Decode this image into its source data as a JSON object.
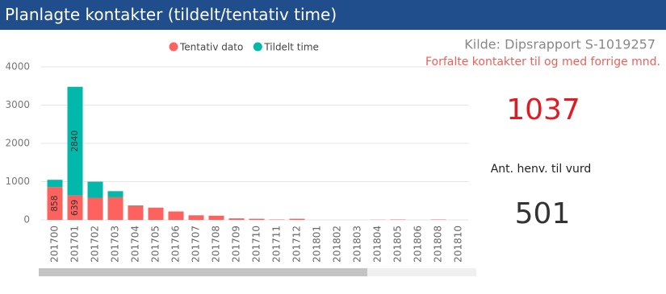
{
  "header": {
    "title": "Planlagte kontakter (tildelt/tentativ time)"
  },
  "source": "Kilde: Dipsrapport S-1019257",
  "subtitle": "Forfalte kontakter til og med forrige mnd.",
  "kpis": [
    {
      "value": 1037,
      "color": "#e01b24"
    },
    {
      "label": "Ant. henv. til vurd",
      "value": 501,
      "color": "#333333"
    }
  ],
  "chart_data": {
    "type": "stacked_bar",
    "categories": [
      "201700",
      "201701",
      "201702",
      "201703",
      "201704",
      "201705",
      "201706",
      "201707",
      "201708",
      "201709",
      "201710",
      "201711",
      "201712",
      "201801",
      "201802",
      "201803",
      "201804",
      "201805",
      "201806",
      "201808",
      "201810"
    ],
    "series": [
      {
        "name": "Tentativ dato",
        "color": "#fd625e",
        "values": [
          858,
          639,
          579,
          591,
          370,
          320,
          220,
          120,
          110,
          40,
          30,
          10,
          30,
          0,
          0,
          0,
          5,
          10,
          0,
          10,
          0
        ]
      },
      {
        "name": "Tildelt time",
        "color": "#01b8aa",
        "values": [
          190,
          2840,
          420,
          160,
          10,
          0,
          0,
          0,
          0,
          0,
          0,
          0,
          0,
          0,
          0,
          0,
          0,
          0,
          0,
          0,
          0
        ]
      }
    ],
    "ylim": [
      0,
      4000
    ],
    "yticks": [
      0,
      1000,
      2000,
      3000,
      4000
    ],
    "grid": true,
    "legend": "top"
  }
}
